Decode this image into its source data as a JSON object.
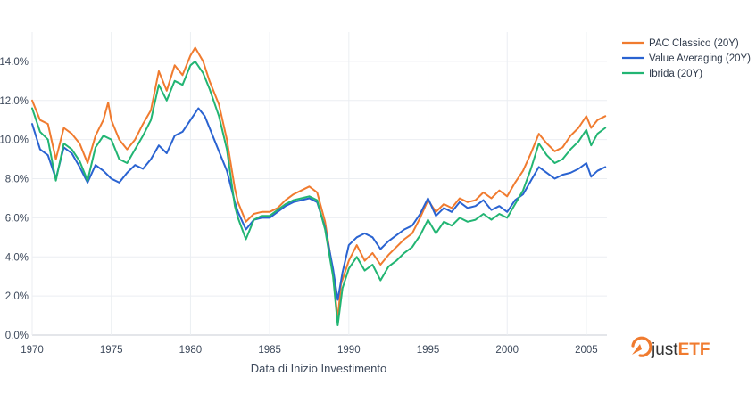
{
  "chart_data": {
    "type": "line",
    "title": "",
    "xlabel": "Data di Inizio Investimento",
    "ylabel": "",
    "xlim": [
      1970,
      2006.3
    ],
    "ylim": [
      0,
      15.5
    ],
    "x_ticks": [
      1970,
      1975,
      1980,
      1985,
      1990,
      1995,
      2000,
      2005
    ],
    "x_tick_labels": [
      "1970",
      "1975",
      "1980",
      "1985",
      "1990",
      "1995",
      "2000",
      "2005"
    ],
    "y_ticks": [
      0,
      2,
      4,
      6,
      8,
      10,
      12,
      14
    ],
    "y_tick_labels": [
      "0.0%",
      "2.0%",
      "4.0%",
      "6.0%",
      "8.0%",
      "10.0%",
      "12.0%",
      "14.0%"
    ],
    "grid": true,
    "legend_position": "top-right",
    "series": [
      {
        "name": "PAC Classico (20Y)",
        "color": "#f07b2f",
        "points": [
          [
            1970.0,
            12.0
          ],
          [
            1970.5,
            11.0
          ],
          [
            1971.0,
            10.8
          ],
          [
            1971.5,
            9.0
          ],
          [
            1972.0,
            10.6
          ],
          [
            1972.5,
            10.3
          ],
          [
            1973.0,
            9.8
          ],
          [
            1973.5,
            8.8
          ],
          [
            1974.0,
            10.2
          ],
          [
            1974.5,
            11.0
          ],
          [
            1974.8,
            11.9
          ],
          [
            1975.0,
            11.0
          ],
          [
            1975.5,
            10.0
          ],
          [
            1976.0,
            9.5
          ],
          [
            1976.5,
            10.0
          ],
          [
            1977.0,
            10.8
          ],
          [
            1977.5,
            11.5
          ],
          [
            1978.0,
            13.5
          ],
          [
            1978.5,
            12.5
          ],
          [
            1979.0,
            13.8
          ],
          [
            1979.5,
            13.3
          ],
          [
            1980.0,
            14.3
          ],
          [
            1980.3,
            14.7
          ],
          [
            1980.8,
            14.0
          ],
          [
            1981.2,
            13.0
          ],
          [
            1981.8,
            11.8
          ],
          [
            1982.3,
            10.0
          ],
          [
            1982.8,
            7.5
          ],
          [
            1983.0,
            6.8
          ],
          [
            1983.5,
            5.8
          ],
          [
            1984.0,
            6.2
          ],
          [
            1984.5,
            6.3
          ],
          [
            1985.0,
            6.3
          ],
          [
            1985.5,
            6.5
          ],
          [
            1986.0,
            6.9
          ],
          [
            1986.5,
            7.2
          ],
          [
            1987.0,
            7.4
          ],
          [
            1987.5,
            7.6
          ],
          [
            1988.0,
            7.3
          ],
          [
            1988.5,
            5.8
          ],
          [
            1989.0,
            3.2
          ],
          [
            1989.3,
            0.8
          ],
          [
            1989.5,
            2.6
          ],
          [
            1990.0,
            3.8
          ],
          [
            1990.5,
            4.6
          ],
          [
            1991.0,
            3.8
          ],
          [
            1991.5,
            4.2
          ],
          [
            1992.0,
            3.6
          ],
          [
            1992.5,
            4.1
          ],
          [
            1993.0,
            4.5
          ],
          [
            1993.5,
            4.9
          ],
          [
            1994.0,
            5.2
          ],
          [
            1994.5,
            6.0
          ],
          [
            1995.0,
            6.9
          ],
          [
            1995.5,
            6.3
          ],
          [
            1996.0,
            6.7
          ],
          [
            1996.5,
            6.5
          ],
          [
            1997.0,
            7.0
          ],
          [
            1997.5,
            6.8
          ],
          [
            1998.0,
            6.9
          ],
          [
            1998.5,
            7.3
          ],
          [
            1999.0,
            7.0
          ],
          [
            1999.5,
            7.4
          ],
          [
            2000.0,
            7.1
          ],
          [
            2000.5,
            7.8
          ],
          [
            2001.0,
            8.4
          ],
          [
            2001.5,
            9.3
          ],
          [
            2002.0,
            10.3
          ],
          [
            2002.5,
            9.8
          ],
          [
            2003.0,
            9.4
          ],
          [
            2003.5,
            9.6
          ],
          [
            2004.0,
            10.2
          ],
          [
            2004.5,
            10.6
          ],
          [
            2005.0,
            11.2
          ],
          [
            2005.3,
            10.6
          ],
          [
            2005.7,
            11.0
          ],
          [
            2006.2,
            11.2
          ]
        ]
      },
      {
        "name": "Value Averaging (20Y)",
        "color": "#2a63d1",
        "points": [
          [
            1970.0,
            10.8
          ],
          [
            1970.5,
            9.5
          ],
          [
            1971.0,
            9.2
          ],
          [
            1971.5,
            8.0
          ],
          [
            1972.0,
            9.6
          ],
          [
            1972.5,
            9.3
          ],
          [
            1973.0,
            8.6
          ],
          [
            1973.5,
            7.8
          ],
          [
            1974.0,
            8.7
          ],
          [
            1974.5,
            8.4
          ],
          [
            1975.0,
            8.0
          ],
          [
            1975.5,
            7.8
          ],
          [
            1976.0,
            8.3
          ],
          [
            1976.5,
            8.7
          ],
          [
            1977.0,
            8.5
          ],
          [
            1977.5,
            9.0
          ],
          [
            1978.0,
            9.7
          ],
          [
            1978.5,
            9.3
          ],
          [
            1979.0,
            10.2
          ],
          [
            1979.5,
            10.4
          ],
          [
            1980.0,
            11.0
          ],
          [
            1980.5,
            11.6
          ],
          [
            1980.9,
            11.2
          ],
          [
            1981.3,
            10.4
          ],
          [
            1981.8,
            9.4
          ],
          [
            1982.3,
            8.4
          ],
          [
            1982.8,
            6.8
          ],
          [
            1983.0,
            6.3
          ],
          [
            1983.5,
            5.4
          ],
          [
            1984.0,
            5.9
          ],
          [
            1984.5,
            6.0
          ],
          [
            1985.0,
            6.0
          ],
          [
            1985.5,
            6.3
          ],
          [
            1986.0,
            6.6
          ],
          [
            1986.5,
            6.8
          ],
          [
            1987.0,
            6.9
          ],
          [
            1987.5,
            7.0
          ],
          [
            1988.0,
            6.8
          ],
          [
            1988.5,
            5.5
          ],
          [
            1989.0,
            3.4
          ],
          [
            1989.3,
            1.8
          ],
          [
            1989.6,
            3.2
          ],
          [
            1990.0,
            4.6
          ],
          [
            1990.5,
            5.0
          ],
          [
            1991.0,
            5.2
          ],
          [
            1991.5,
            5.0
          ],
          [
            1992.0,
            4.4
          ],
          [
            1992.5,
            4.8
          ],
          [
            1993.0,
            5.1
          ],
          [
            1993.5,
            5.4
          ],
          [
            1994.0,
            5.6
          ],
          [
            1994.5,
            6.2
          ],
          [
            1995.0,
            7.0
          ],
          [
            1995.5,
            6.1
          ],
          [
            1996.0,
            6.5
          ],
          [
            1996.5,
            6.3
          ],
          [
            1997.0,
            6.8
          ],
          [
            1997.5,
            6.5
          ],
          [
            1998.0,
            6.6
          ],
          [
            1998.5,
            6.9
          ],
          [
            1999.0,
            6.4
          ],
          [
            1999.5,
            6.6
          ],
          [
            2000.0,
            6.3
          ],
          [
            2000.5,
            6.9
          ],
          [
            2001.0,
            7.2
          ],
          [
            2001.5,
            7.9
          ],
          [
            2002.0,
            8.6
          ],
          [
            2002.5,
            8.3
          ],
          [
            2003.0,
            8.0
          ],
          [
            2003.5,
            8.2
          ],
          [
            2004.0,
            8.3
          ],
          [
            2004.5,
            8.5
          ],
          [
            2005.0,
            8.8
          ],
          [
            2005.3,
            8.1
          ],
          [
            2005.7,
            8.4
          ],
          [
            2006.2,
            8.6
          ]
        ]
      },
      {
        "name": "Ibrida (20Y)",
        "color": "#22b573",
        "points": [
          [
            1970.0,
            11.6
          ],
          [
            1970.5,
            10.4
          ],
          [
            1971.0,
            10.0
          ],
          [
            1971.5,
            7.9
          ],
          [
            1972.0,
            9.8
          ],
          [
            1972.5,
            9.5
          ],
          [
            1973.0,
            8.9
          ],
          [
            1973.5,
            7.9
          ],
          [
            1974.0,
            9.6
          ],
          [
            1974.5,
            10.2
          ],
          [
            1975.0,
            10.0
          ],
          [
            1975.5,
            9.0
          ],
          [
            1976.0,
            8.8
          ],
          [
            1976.5,
            9.5
          ],
          [
            1977.0,
            10.2
          ],
          [
            1977.5,
            11.0
          ],
          [
            1978.0,
            12.8
          ],
          [
            1978.5,
            12.0
          ],
          [
            1979.0,
            13.0
          ],
          [
            1979.5,
            12.8
          ],
          [
            1980.0,
            13.8
          ],
          [
            1980.3,
            14.0
          ],
          [
            1980.8,
            13.4
          ],
          [
            1981.2,
            12.6
          ],
          [
            1981.8,
            11.2
          ],
          [
            1982.3,
            9.5
          ],
          [
            1982.8,
            6.6
          ],
          [
            1983.0,
            6.0
          ],
          [
            1983.5,
            4.9
          ],
          [
            1984.0,
            5.9
          ],
          [
            1984.5,
            6.1
          ],
          [
            1985.0,
            6.1
          ],
          [
            1985.5,
            6.4
          ],
          [
            1986.0,
            6.7
          ],
          [
            1986.5,
            6.9
          ],
          [
            1987.0,
            7.0
          ],
          [
            1987.5,
            7.1
          ],
          [
            1988.0,
            6.9
          ],
          [
            1988.5,
            5.4
          ],
          [
            1989.0,
            3.0
          ],
          [
            1989.3,
            0.5
          ],
          [
            1989.6,
            2.4
          ],
          [
            1990.0,
            3.4
          ],
          [
            1990.5,
            4.0
          ],
          [
            1991.0,
            3.3
          ],
          [
            1991.5,
            3.6
          ],
          [
            1992.0,
            2.8
          ],
          [
            1992.5,
            3.5
          ],
          [
            1993.0,
            3.8
          ],
          [
            1993.5,
            4.2
          ],
          [
            1994.0,
            4.5
          ],
          [
            1994.5,
            5.1
          ],
          [
            1995.0,
            5.9
          ],
          [
            1995.5,
            5.2
          ],
          [
            1996.0,
            5.8
          ],
          [
            1996.5,
            5.6
          ],
          [
            1997.0,
            6.0
          ],
          [
            1997.5,
            5.8
          ],
          [
            1998.0,
            5.9
          ],
          [
            1998.5,
            6.2
          ],
          [
            1999.0,
            5.9
          ],
          [
            1999.5,
            6.2
          ],
          [
            2000.0,
            6.0
          ],
          [
            2000.5,
            6.7
          ],
          [
            2001.0,
            7.4
          ],
          [
            2001.5,
            8.5
          ],
          [
            2002.0,
            9.8
          ],
          [
            2002.5,
            9.2
          ],
          [
            2003.0,
            8.8
          ],
          [
            2003.5,
            9.0
          ],
          [
            2004.0,
            9.5
          ],
          [
            2004.5,
            9.9
          ],
          [
            2005.0,
            10.5
          ],
          [
            2005.3,
            9.7
          ],
          [
            2005.7,
            10.3
          ],
          [
            2006.2,
            10.6
          ]
        ]
      }
    ]
  },
  "branding": {
    "logo_text_prefix": "just",
    "logo_text_suffix": "ETF",
    "logo_color": "#f07b2f",
    "logo_text_color": "#333333"
  }
}
